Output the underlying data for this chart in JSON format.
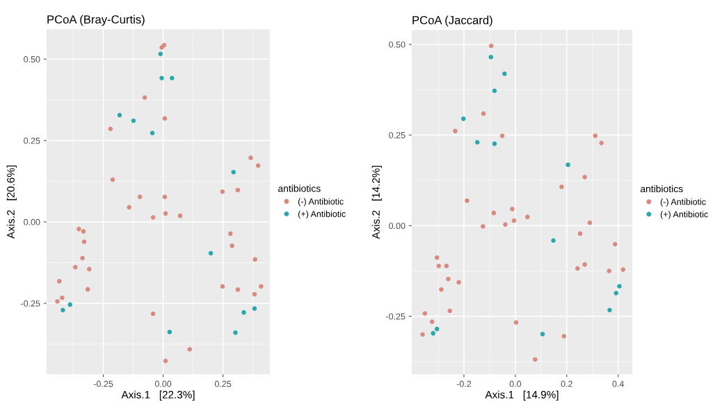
{
  "chart_data": [
    {
      "type": "scatter",
      "title": "PCoA (Bray-Curtis)",
      "xlabel": "Axis.1   [22.3%]",
      "ylabel": "Axis.2   [20.6%]",
      "legend_title": "antibiotics",
      "legend": "right",
      "grid": true,
      "marker": "circle",
      "xlim": [
        -0.487,
        0.446
      ],
      "ylim": [
        -0.468,
        0.592
      ],
      "xticks": [
        {
          "value": -0.25,
          "label": "-0.25"
        },
        {
          "value": 0,
          "label": "0.00"
        },
        {
          "value": 0.25,
          "label": "0.25"
        }
      ],
      "yticks": [
        {
          "value": -0.25,
          "label": "-0.25"
        },
        {
          "value": 0,
          "label": "0.00"
        },
        {
          "value": 0.25,
          "label": "0.25"
        },
        {
          "value": 0.5,
          "label": "0.50"
        }
      ],
      "series": [
        {
          "name": "(-) Antibiotic",
          "color": "#d98a7e",
          "x": [
            -0.006,
            0.004,
            -0.077,
            0.007,
            -0.22,
            -0.211,
            0.248,
            0.312,
            -0.097,
            0.007,
            -0.142,
            -0.042,
            0.01,
            0.071,
            0.366,
            0.397,
            0.384,
            0.409,
            0.382,
            -0.352,
            -0.333,
            -0.33,
            -0.337,
            -0.367,
            -0.309,
            -0.434,
            -0.315,
            -0.442,
            -0.422,
            -0.042,
            0.111,
            0.01,
            0.281,
            0.288,
            0.248,
            0.312
          ],
          "values": [
            0.536,
            0.543,
            0.382,
            0.318,
            0.286,
            0.13,
            0.093,
            0.098,
            0.077,
            0.077,
            0.045,
            0.014,
            0.026,
            0.019,
            0.197,
            0.173,
            -0.115,
            -0.198,
            -0.222,
            -0.022,
            -0.029,
            -0.061,
            -0.111,
            -0.139,
            -0.145,
            -0.182,
            -0.207,
            -0.244,
            -0.233,
            -0.282,
            -0.391,
            -0.427,
            -0.036,
            -0.073,
            -0.198,
            -0.208
          ]
        },
        {
          "name": "(+) Antibiotic",
          "color": "#2aa7ad",
          "x": [
            -0.011,
            -0.006,
            0.037,
            -0.182,
            -0.124,
            -0.045,
            0.294,
            -0.389,
            -0.419,
            0.027,
            0.199,
            0.337,
            0.302,
            0.382
          ],
          "values": [
            0.516,
            0.442,
            0.442,
            0.328,
            0.311,
            0.273,
            0.153,
            -0.254,
            -0.271,
            -0.338,
            -0.096,
            -0.278,
            -0.34,
            -0.266
          ]
        }
      ]
    },
    {
      "type": "scatter",
      "title": "PCoA (Jaccard)",
      "xlabel": "Axis.1   [14.9%]",
      "ylabel": "Axis.2   [14.2%]",
      "legend_title": "antibiotics",
      "legend": "right",
      "grid": true,
      "marker": "circle",
      "xlim": [
        -0.403,
        0.455
      ],
      "ylim": [
        -0.41,
        0.54
      ],
      "xticks": [
        -0.2,
        {
          "value": 0,
          "label": "0.0"
        },
        0.2,
        0.4
      ],
      "yticks": [
        {
          "value": -0.25,
          "label": "-0.25"
        },
        {
          "value": 0,
          "label": "0.00"
        },
        {
          "value": 0.25,
          "label": "0.25"
        },
        {
          "value": 0.5,
          "label": "0.50"
        }
      ],
      "series": [
        {
          "name": "(-) Antibiotic",
          "color": "#d98a7e",
          "x": [
            -0.094,
            -0.124,
            -0.234,
            -0.051,
            0.18,
            -0.188,
            -0.084,
            -0.012,
            0.047,
            -0.005,
            -0.126,
            -0.039,
            -0.305,
            -0.298,
            -0.268,
            -0.261,
            -0.22,
            -0.288,
            -0.255,
            -0.352,
            -0.324,
            -0.361,
            0.003,
            0.189,
            0.077,
            0.311,
            0.335,
            0.27,
            0.29,
            0.252,
            0.388,
            0.242,
            0.27,
            0.365,
            0.419
          ],
          "values": [
            0.496,
            0.309,
            0.261,
            0.248,
            0.107,
            0.069,
            0.035,
            0.046,
            0.024,
            0.014,
            -0.002,
            0.003,
            -0.088,
            -0.111,
            -0.111,
            -0.147,
            -0.156,
            -0.176,
            -0.235,
            -0.242,
            -0.265,
            -0.3,
            -0.267,
            -0.305,
            -0.369,
            0.248,
            0.228,
            0.134,
            0.008,
            -0.022,
            -0.051,
            -0.118,
            -0.107,
            -0.125,
            -0.121
          ]
        },
        {
          "name": "(+) Antibiotic",
          "color": "#2aa7ad",
          "x": [
            -0.095,
            -0.042,
            -0.081,
            -0.202,
            -0.148,
            -0.081,
            0.205,
            0.148,
            -0.305,
            -0.32,
            0.106,
            0.405,
            0.392,
            0.367
          ],
          "values": [
            0.465,
            0.419,
            0.372,
            0.295,
            0.23,
            0.226,
            0.168,
            -0.041,
            -0.285,
            -0.297,
            -0.299,
            -0.167,
            -0.186,
            -0.233
          ]
        }
      ]
    }
  ]
}
